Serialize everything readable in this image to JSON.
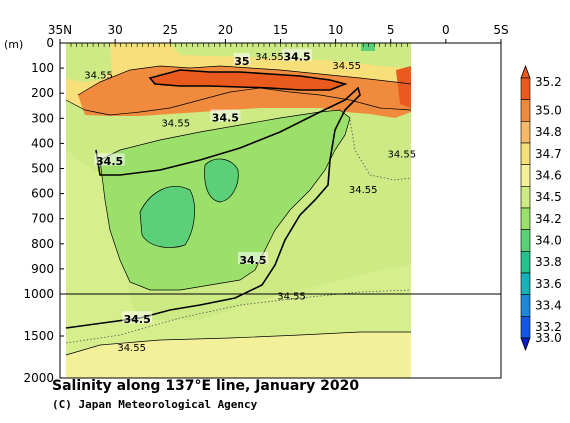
{
  "chart_data": {
    "type": "heatmap",
    "title": "Salinity along 137°E line, January 2020",
    "credit": "(C) Japan Meteorological Agency",
    "x_tick_labels": [
      "35N",
      "30",
      "25",
      "20",
      "15",
      "10",
      "5",
      "0",
      "5S"
    ],
    "xlim": [
      35,
      -5
    ],
    "y_unit_label": "(m)",
    "y_tick_labels_upper": [
      "0",
      "100",
      "200",
      "300",
      "400",
      "500",
      "600",
      "700",
      "800",
      "900",
      "1000"
    ],
    "y_tick_labels_lower": [
      "1500",
      "2000"
    ],
    "ylim": [
      0,
      2000
    ],
    "y_axis_break_depth": 1000,
    "data_coverage_lat": [
      34,
      3.5
    ],
    "colorbar": {
      "levels": [
        "35.2",
        "35.0",
        "34.8",
        "34.7",
        "34.6",
        "34.5",
        "34.2",
        "34.0",
        "33.8",
        "33.6",
        "33.4",
        "33.2",
        "33.0"
      ],
      "colors": [
        "#e85a1e",
        "#f08a3c",
        "#f5b96a",
        "#f7e07a",
        "#f3f09a",
        "#cdea84",
        "#9be06a",
        "#5cd078",
        "#26bf8e",
        "#19b0b8",
        "#1e88d8",
        "#1457e0",
        "#0a1ec8"
      ]
    },
    "contour_labels": [
      {
        "text": "35",
        "lat": 18.5,
        "depth": 75
      },
      {
        "text": "34.5",
        "lat": 13.5,
        "depth": 58
      },
      {
        "text": "34.55",
        "lat": 16,
        "depth": 55
      },
      {
        "text": "34.55",
        "lat": 9,
        "depth": 92
      },
      {
        "text": "34.55",
        "lat": 31.5,
        "depth": 130
      },
      {
        "text": "34.55",
        "lat": 24.5,
        "depth": 320
      },
      {
        "text": "34.5",
        "lat": 20,
        "depth": 300
      },
      {
        "text": "34.5",
        "lat": 30.5,
        "depth": 475
      },
      {
        "text": "34.55",
        "lat": 4,
        "depth": 445
      },
      {
        "text": "34.55",
        "lat": 7.5,
        "depth": 585
      },
      {
        "text": "34.5",
        "lat": 17.5,
        "depth": 868
      },
      {
        "text": "34.55",
        "lat": 14,
        "depth": 1030
      },
      {
        "text": "34.5",
        "lat": 28,
        "depth": 1310
      },
      {
        "text": "34.55",
        "lat": 28.5,
        "depth": 1640
      }
    ]
  }
}
